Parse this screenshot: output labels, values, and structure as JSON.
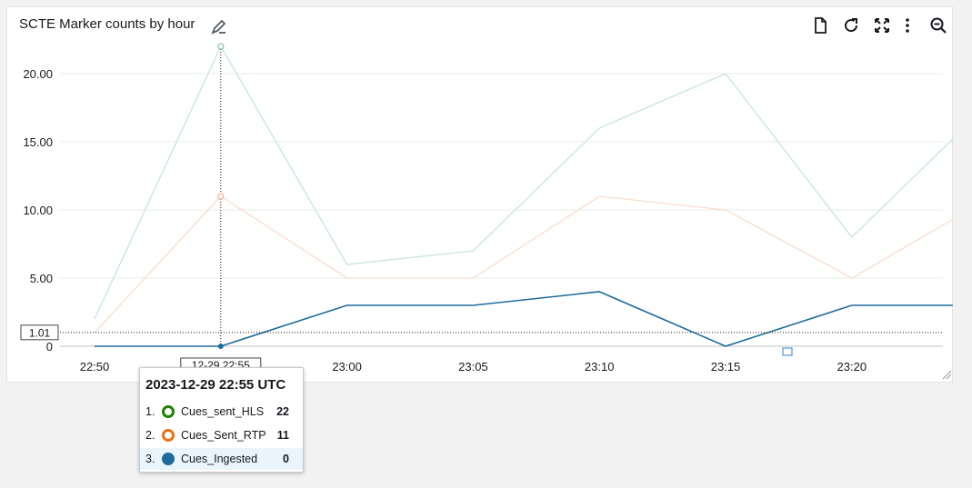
{
  "widget": {
    "title": "SCTE Marker counts by hour",
    "icons": [
      "edit-icon",
      "download-icon",
      "refresh-icon",
      "expand-icon",
      "more-options-icon",
      "zoom-out-icon"
    ]
  },
  "chart_data": {
    "type": "line",
    "x": [
      "22:50",
      "22:55",
      "23:00",
      "23:05",
      "23:10",
      "23:15",
      "23:20",
      "23:24"
    ],
    "x_tick_labels": [
      "22:50",
      "23:00",
      "23:05",
      "23:10",
      "23:15",
      "23:20"
    ],
    "y_tick_labels": [
      "20.00",
      "15.00",
      "10.00",
      "5.00",
      "0"
    ],
    "ylim": [
      0,
      22
    ],
    "grid": true,
    "series": [
      {
        "name": "Cues_sent_HLS",
        "color": "#1d8102",
        "line_color": "#c6e5df",
        "values": [
          2,
          22,
          6,
          7,
          16,
          20,
          8,
          15.2
        ]
      },
      {
        "name": "Cues_Sent_RTP",
        "color": "#ec7211",
        "line_color": "#fbdccc",
        "values": [
          1,
          11,
          5,
          5,
          11,
          10,
          5,
          9.3
        ]
      },
      {
        "name": "Cues_Ingested",
        "color": "#1f6b9a",
        "line_color": "#1f6b9a",
        "values": [
          0,
          0,
          3,
          3,
          4,
          0,
          3,
          3
        ]
      }
    ],
    "cursor": {
      "x": "12-29 22:55",
      "y": "1.01"
    }
  },
  "tooltip": {
    "title": "2023-12-29 22:55 UTC",
    "rows": [
      {
        "idx": "1.",
        "name": "Cues_sent_HLS",
        "value": "22"
      },
      {
        "idx": "2.",
        "name": "Cues_Sent_RTP",
        "value": "11"
      },
      {
        "idx": "3.",
        "name": "Cues_Ingested",
        "value": "0"
      }
    ]
  }
}
